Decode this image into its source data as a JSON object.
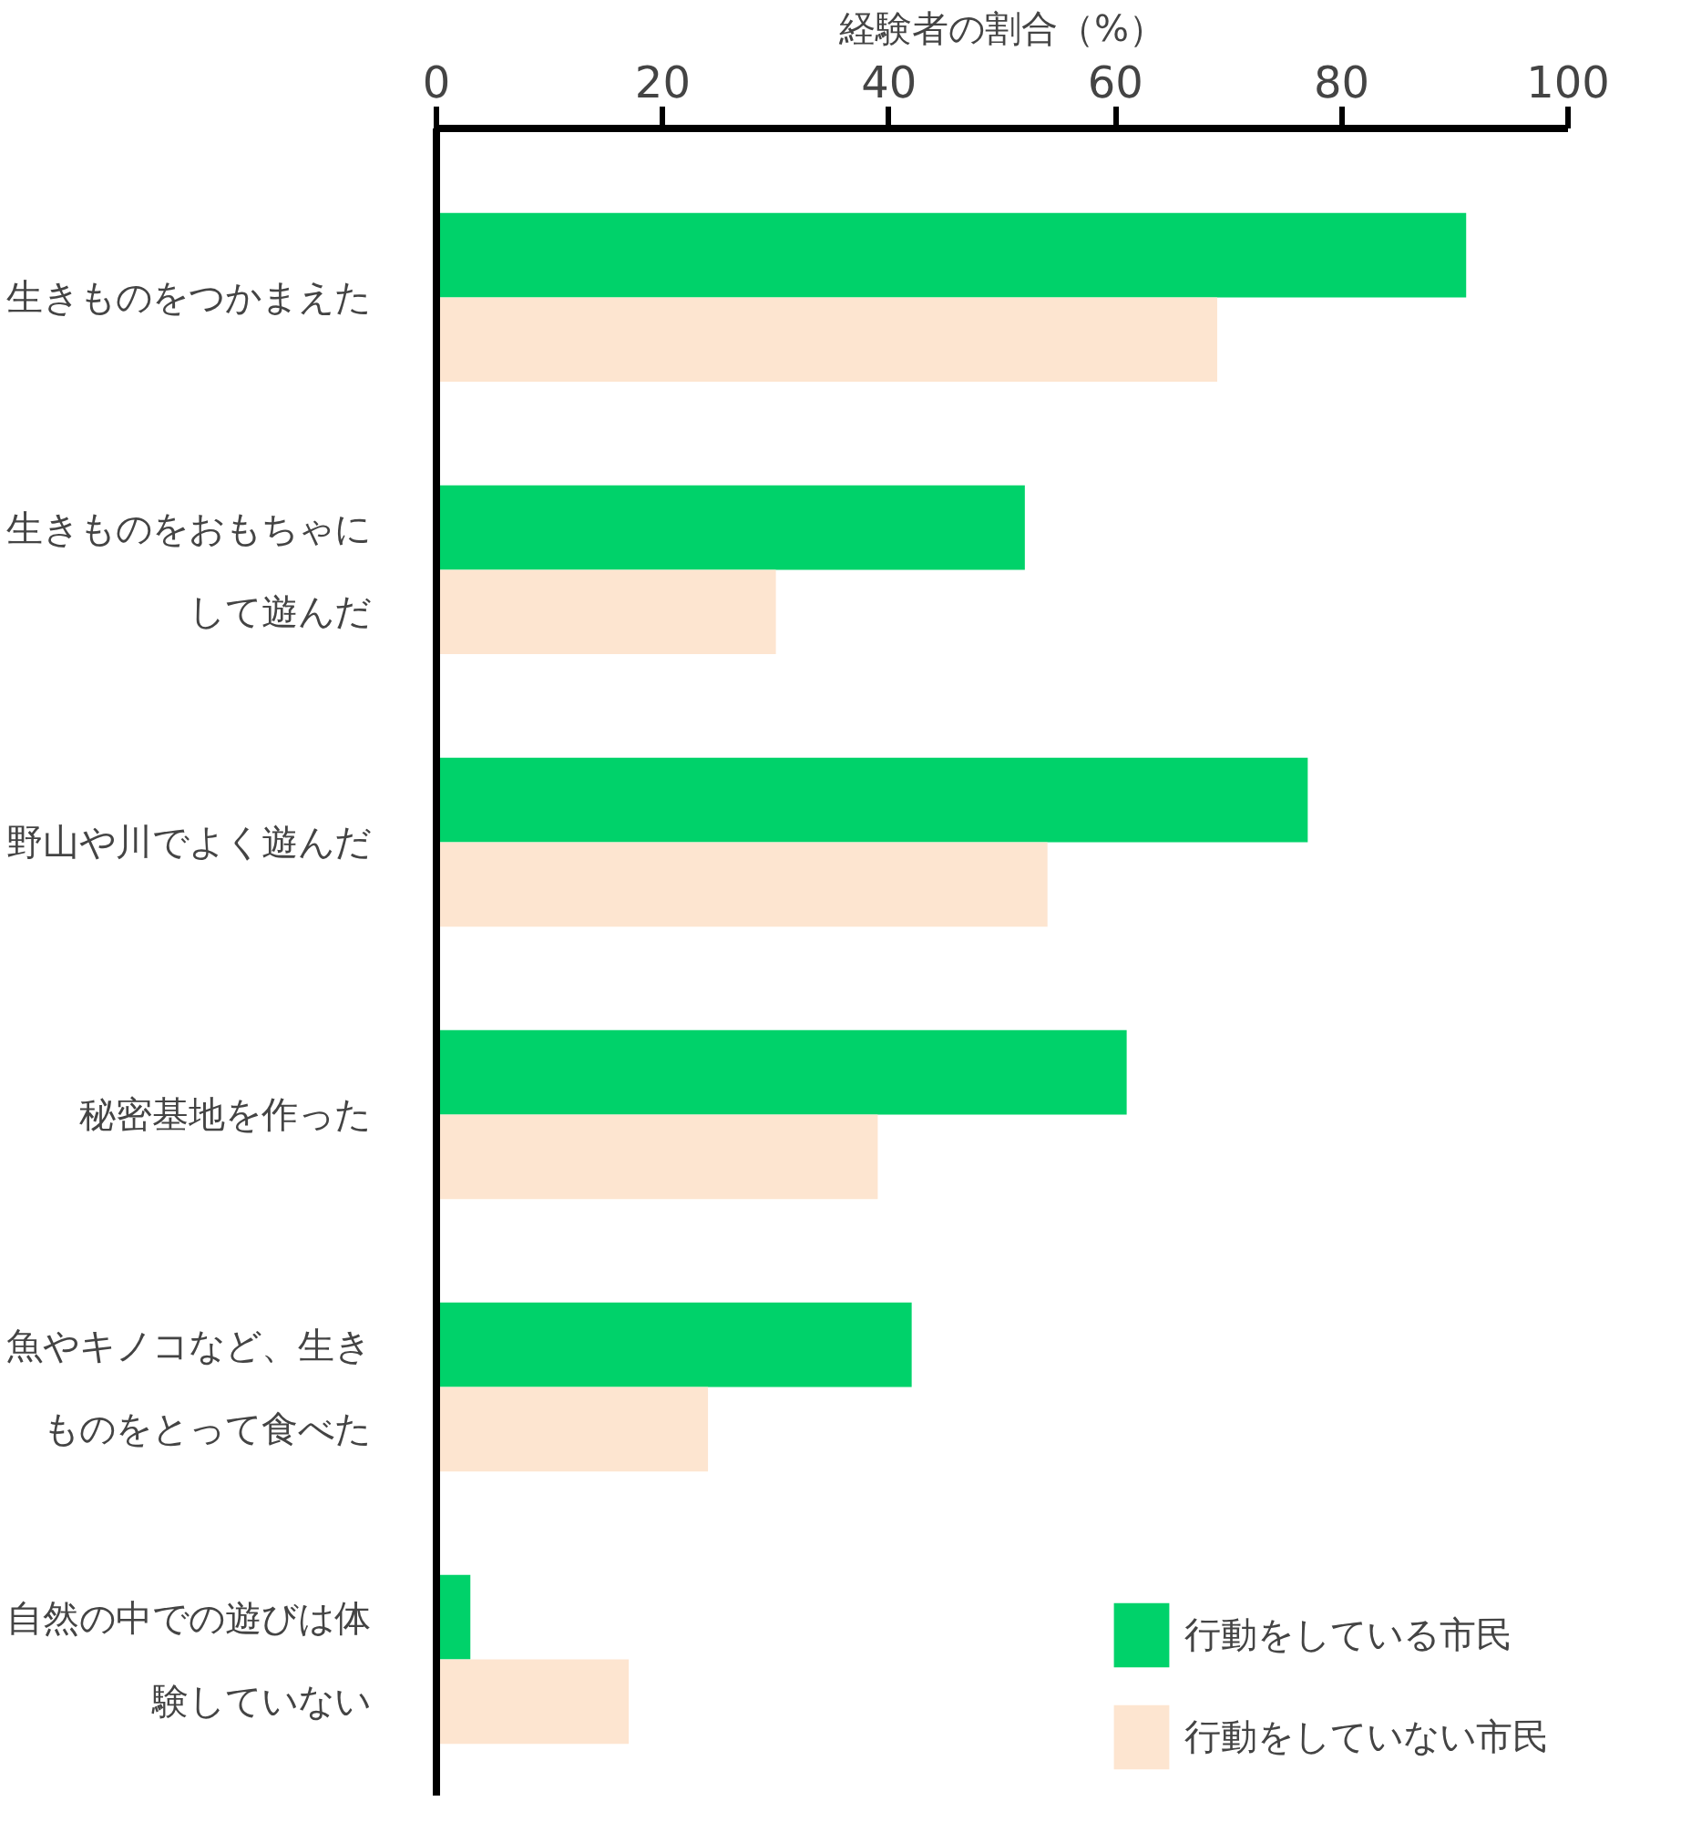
{
  "chart_data": {
    "type": "bar",
    "orientation": "horizontal",
    "xlabel": "経験者の割合（%）",
    "categories": [
      "生きものをつかまえた",
      "生きものをおもちゃにして遊んだ",
      "野山や川でよく遊んだ",
      "秘密基地を作った",
      "魚やキノコなど、生きものをとって食べた",
      "自然の中での遊びは体験していない"
    ],
    "series": [
      {
        "name": "行動をしている市民",
        "color": "#00d26a",
        "values": [
          91,
          52,
          77,
          61,
          42,
          3
        ]
      },
      {
        "name": "行動をしていない市民",
        "color": "#fde5d0",
        "values": [
          69,
          30,
          54,
          39,
          24,
          17
        ]
      }
    ],
    "xlim": [
      0,
      100
    ],
    "xticks": [
      0,
      20,
      40,
      60,
      80,
      100
    ],
    "grid": false,
    "legend": "bottom right"
  }
}
